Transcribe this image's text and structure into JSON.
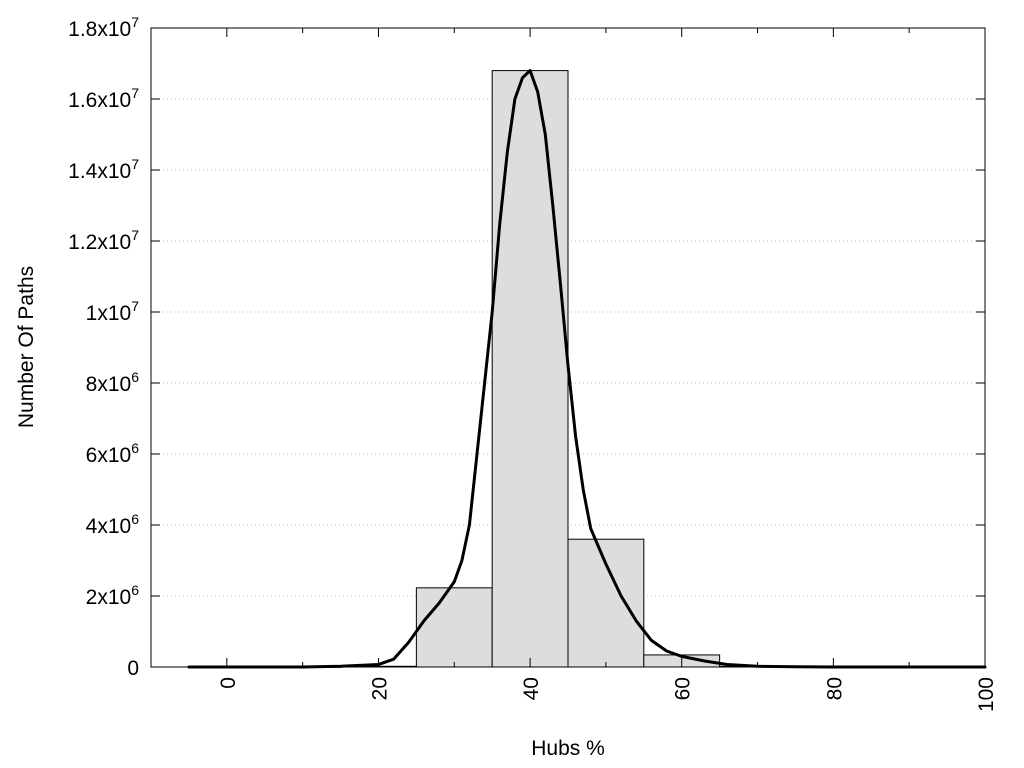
{
  "chart_data": {
    "type": "bar",
    "title": "",
    "xlabel": "Hubs %",
    "ylabel": "Number Of Paths",
    "xlim": [
      -10,
      100
    ],
    "ylim": [
      0,
      18000000
    ],
    "grid": {
      "x": false,
      "y": true
    },
    "legend": "none",
    "x_ticks": [
      {
        "value": 0,
        "label": "0"
      },
      {
        "value": 20,
        "label": "20"
      },
      {
        "value": 40,
        "label": "40"
      },
      {
        "value": 60,
        "label": "60"
      },
      {
        "value": 80,
        "label": "80"
      },
      {
        "value": 100,
        "label": "100"
      }
    ],
    "y_ticks": [
      {
        "value": 0,
        "base": "0",
        "exp": ""
      },
      {
        "value": 2000000,
        "base": "2x10",
        "exp": "6"
      },
      {
        "value": 4000000,
        "base": "4x10",
        "exp": "6"
      },
      {
        "value": 6000000,
        "base": "6x10",
        "exp": "6"
      },
      {
        "value": 8000000,
        "base": "8x10",
        "exp": "6"
      },
      {
        "value": 10000000,
        "base": "1x10",
        "exp": "7"
      },
      {
        "value": 12000000,
        "base": "1.2x10",
        "exp": "7"
      },
      {
        "value": 14000000,
        "base": "1.4x10",
        "exp": "7"
      },
      {
        "value": 16000000,
        "base": "1.6x10",
        "exp": "7"
      },
      {
        "value": 18000000,
        "base": "1.8x10",
        "exp": "7"
      }
    ],
    "bins": [
      {
        "from": -5,
        "to": 5,
        "value": 5000
      },
      {
        "from": 5,
        "to": 15,
        "value": 5000
      },
      {
        "from": 15,
        "to": 25,
        "value": 20000
      },
      {
        "from": 25,
        "to": 35,
        "value": 2230000
      },
      {
        "from": 35,
        "to": 45,
        "value": 16800000
      },
      {
        "from": 45,
        "to": 55,
        "value": 3600000
      },
      {
        "from": 55,
        "to": 65,
        "value": 340000
      },
      {
        "from": 65,
        "to": 75,
        "value": 20000
      },
      {
        "from": 75,
        "to": 85,
        "value": 5000
      },
      {
        "from": 85,
        "to": 95,
        "value": 5000
      },
      {
        "from": 95,
        "to": 100,
        "value": 5000
      }
    ],
    "curve": {
      "type": "line",
      "x": [
        -5,
        0,
        10,
        15,
        20,
        22,
        24,
        26,
        28,
        30,
        31,
        32,
        33,
        34,
        35,
        36,
        37,
        38,
        39,
        40,
        41,
        42,
        43,
        44,
        45,
        46,
        47,
        48,
        49,
        50,
        52,
        54,
        56,
        58,
        60,
        63,
        66,
        70,
        75,
        80,
        90,
        100
      ],
      "y": [
        0,
        0,
        0,
        20000,
        70000,
        220000,
        700000,
        1300000,
        1800000,
        2400000,
        3000000,
        4000000,
        6000000,
        8000000,
        10000000,
        12500000,
        14500000,
        16000000,
        16600000,
        16800000,
        16200000,
        15000000,
        13000000,
        10800000,
        8500000,
        6500000,
        5000000,
        3900000,
        3400000,
        2900000,
        2000000,
        1300000,
        750000,
        450000,
        300000,
        170000,
        70000,
        20000,
        5000,
        0,
        0,
        0
      ]
    },
    "colors": {
      "bar_fill": "#dddddd",
      "bar_stroke": "#000000",
      "curve": "#000000",
      "grid": "#bfbfbf",
      "axis": "#000000"
    }
  }
}
